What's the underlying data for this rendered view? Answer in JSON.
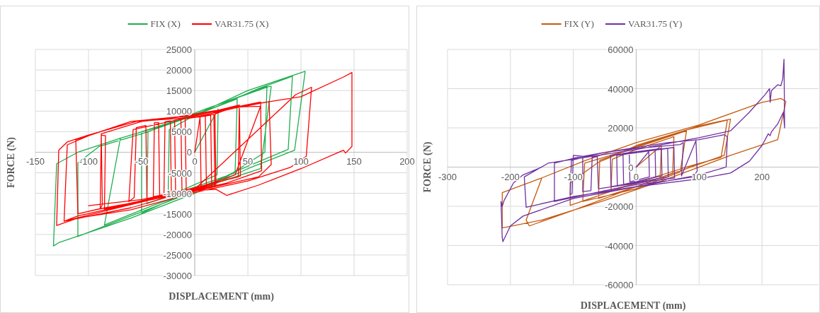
{
  "chart_data": [
    {
      "type": "line",
      "xlabel": "DISPLACEMENT (mm)",
      "ylabel": "FORCE (N)",
      "xlim": [
        -150,
        200
      ],
      "xticks": [
        -150,
        -100,
        -50,
        0,
        50,
        100,
        150,
        200
      ],
      "ylim": [
        -30000,
        25000
      ],
      "yticks": [
        -30000,
        -25000,
        -20000,
        -15000,
        -10000,
        -5000,
        0,
        5000,
        10000,
        15000,
        20000,
        25000
      ],
      "grid": true,
      "legend": "top",
      "series": [
        {
          "name": "FIX (X)",
          "color": "#1fae4f",
          "x": [
            0,
            22,
            21,
            -10,
            -25,
            -24,
            0,
            40,
            38,
            0,
            -45,
            -44,
            0,
            68,
            66,
            30,
            0,
            -50,
            -50,
            -20,
            10,
            70,
            72,
            62,
            20,
            -40,
            -85,
            -70,
            -30,
            20,
            60,
            92,
            88,
            40,
            0,
            -60,
            -110,
            -110,
            -90,
            -50,
            0,
            50,
            104,
            94,
            50,
            0,
            -60,
            -128,
            -133,
            -130,
            -110,
            -70
          ],
          "values": [
            0,
            10500,
            -5500,
            -9000,
            -10500,
            5500,
            9000,
            13000,
            -5000,
            -8500,
            -12500,
            5000,
            9500,
            16000,
            0,
            -6000,
            -9000,
            -14800,
            5000,
            7500,
            10500,
            16000,
            16000,
            -4000,
            -7500,
            -13000,
            -17700,
            3400,
            6500,
            11000,
            15500,
            18500,
            700,
            -4500,
            -9500,
            -15500,
            -20500,
            -2600,
            1400,
            4500,
            9000,
            15000,
            19700,
            500,
            -4000,
            -10000,
            -16000,
            -22000,
            -22800,
            -2800,
            0,
            3400
          ]
        },
        {
          "name": "VAR31.75 (X)",
          "color": "#ff0000",
          "x": [
            0,
            5,
            6,
            -8,
            -9,
            10,
            11,
            -12,
            -13,
            15,
            16,
            -18,
            -19,
            18,
            19,
            -22,
            -23,
            -28,
            -29,
            -33,
            -34,
            -38,
            -39,
            20,
            19,
            42,
            41,
            -45,
            -46,
            -55,
            -57,
            -62,
            -58,
            0,
            42,
            43,
            -10,
            -85,
            -84,
            -88,
            -89,
            -87,
            -88,
            -50,
            0,
            62,
            63,
            30,
            -30,
            -90,
            -110,
            -112,
            -95,
            -60,
            0,
            50,
            70,
            72,
            60,
            0,
            -50,
            -110,
            -123,
            -120,
            -100,
            -60,
            -30,
            40,
            62,
            38,
            0,
            -60,
            -123,
            -80,
            0,
            95,
            110,
            105,
            90,
            50,
            0,
            -60,
            -110,
            -130,
            -128,
            -120,
            -100,
            -55,
            0,
            50,
            100,
            140,
            148,
            148,
            142,
            140,
            100,
            60,
            30,
            20,
            -10,
            -50,
            -100
          ],
          "values": [
            0,
            8500,
            -8500,
            -9500,
            8200,
            8800,
            -8500,
            -9600,
            8000,
            9000,
            -8600,
            -9800,
            7800,
            9200,
            -8200,
            -10000,
            7600,
            7400,
            -10300,
            -10500,
            7200,
            7200,
            -10800,
            -7800,
            9300,
            11500,
            -6000,
            -11500,
            6500,
            6000,
            -11000,
            -12000,
            5500,
            8800,
            11500,
            -5800,
            -9500,
            -13800,
            4000,
            4200,
            -13800,
            -12800,
            4500,
            7500,
            9000,
            12200,
            -4500,
            -7500,
            -11000,
            -13800,
            -15000,
            3000,
            4500,
            7500,
            9000,
            11300,
            12300,
            -3000,
            -6000,
            -9500,
            -12000,
            -15500,
            -16800,
            1800,
            4000,
            7500,
            8000,
            11000,
            11200,
            -5500,
            -9000,
            -13500,
            -16800,
            -14000,
            -9000,
            14000,
            15800,
            -1000,
            -3700,
            -7000,
            -9800,
            -14000,
            -16000,
            -17800,
            500,
            2500,
            4200,
            7500,
            8500,
            11500,
            13500,
            18300,
            19400,
            1400,
            -200,
            500,
            -4000,
            -8000,
            -10500,
            -9000,
            -9500,
            -11500,
            -13000
          ]
        }
      ]
    },
    {
      "type": "line",
      "xlabel": "DISPLACEMENT (mm)",
      "ylabel": "FORCE (N)",
      "xlim": [
        -300,
        290
      ],
      "xticks": [
        -300,
        -200,
        -100,
        0,
        100,
        200
      ],
      "ylim": [
        -60000,
        60000
      ],
      "yticks": [
        -60000,
        -40000,
        -20000,
        0,
        20000,
        40000,
        60000
      ],
      "grid": true,
      "legend": "top",
      "series": [
        {
          "name": "FIX (Y)",
          "color": "#c55a11",
          "x": [
            0,
            40,
            38,
            -40,
            -38,
            0,
            60,
            58,
            0,
            -60,
            -58,
            0,
            80,
            70,
            0,
            -85,
            -82,
            -20,
            0,
            80,
            145,
            135,
            80,
            0,
            -105,
            -105,
            -60,
            0,
            100,
            150,
            140,
            60,
            0,
            -100,
            -170,
            -175,
            -150,
            -80,
            0,
            100,
            200,
            230,
            238,
            225,
            150,
            50,
            -50,
            -150,
            -213,
            -213,
            -150
          ],
          "values": [
            0,
            11000,
            -5500,
            -11500,
            4000,
            9000,
            15500,
            -3000,
            -10000,
            -16000,
            3500,
            10000,
            18500,
            -2500,
            -11000,
            -17500,
            2000,
            8000,
            11000,
            19000,
            24000,
            5000,
            0,
            -8000,
            -19500,
            -8000,
            2500,
            10500,
            21000,
            24500,
            6000,
            -3000,
            -10000,
            -22000,
            -30000,
            -27000,
            -5500,
            3500,
            12500,
            21500,
            33000,
            35000,
            33500,
            14000,
            6000,
            -6000,
            -17000,
            -27000,
            -31000,
            -13000,
            -5500
          ]
        },
        {
          "name": "VAR31.75 (Y)",
          "color": "#7030a0",
          "x": [
            0,
            20,
            21,
            -10,
            -11,
            30,
            31,
            -20,
            -21,
            40,
            41,
            -30,
            -31,
            50,
            51,
            -40,
            -41,
            60,
            61,
            -60,
            -62,
            -70,
            -72,
            -85,
            -85,
            -100,
            -102,
            -105,
            -103,
            -50,
            0,
            70,
            75,
            72,
            95,
            97,
            90,
            50,
            0,
            -50,
            -130,
            -130,
            -100,
            -50,
            50,
            100,
            140,
            145,
            143,
            100,
            0,
            -100,
            -175,
            -178,
            -140,
            -100,
            0,
            100,
            150,
            180,
            205,
            212,
            213,
            215,
            225,
            230,
            233,
            235,
            236,
            234,
            225,
            215,
            213,
            210,
            200,
            180,
            150,
            100,
            0,
            -100,
            -180,
            -200,
            -212,
            -213,
            -215,
            -213,
            -210,
            -195,
            -180,
            -150
          ],
          "values": [
            0,
            8000,
            -5000,
            -7500,
            7000,
            9000,
            -5000,
            -9000,
            7000,
            9500,
            -4500,
            -9500,
            6000,
            9500,
            -5000,
            -10000,
            6000,
            10000,
            -5500,
            -11000,
            5500,
            5000,
            -12000,
            -12500,
            5500,
            6000,
            -13500,
            -14000,
            3500,
            7500,
            9500,
            11500,
            12500,
            -4500,
            13500,
            -2000,
            -5000,
            -7000,
            -9000,
            -12000,
            -17500,
            2000,
            4500,
            7500,
            12500,
            14000,
            16500,
            15500,
            0,
            -4000,
            -10000,
            -15000,
            -20500,
            -5000,
            2000,
            4000,
            9000,
            15000,
            18500,
            28000,
            37000,
            40000,
            33000,
            39000,
            42000,
            41500,
            45000,
            55000,
            20000,
            28000,
            22000,
            18000,
            16000,
            17000,
            11000,
            3000,
            -3000,
            -6000,
            -10000,
            -16000,
            -25000,
            -30000,
            -38000,
            -36000,
            -17500,
            -20000,
            -17000,
            -8000,
            -4000,
            0
          ]
        }
      ]
    }
  ]
}
